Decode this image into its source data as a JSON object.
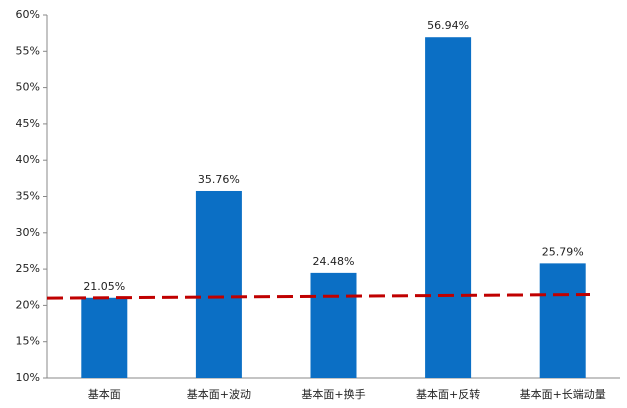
{
  "chart_data": {
    "type": "bar",
    "categories": [
      "基本面",
      "基本面+波动",
      "基本面+换手",
      "基本面+反转",
      "基本面+长端动量"
    ],
    "values": [
      21.05,
      35.76,
      24.48,
      56.94,
      25.79
    ],
    "value_labels": [
      "21.05%",
      "35.76%",
      "24.48%",
      "56.94%",
      "25.79%"
    ],
    "color": "#0b6fc5",
    "ylim": [
      10,
      60
    ],
    "yticks": [
      {
        "value": 10,
        "label": "10%"
      },
      {
        "value": 15,
        "label": "15%"
      },
      {
        "value": 20,
        "label": "20%"
      },
      {
        "value": 25,
        "label": "25%"
      },
      {
        "value": 30,
        "label": "30%"
      },
      {
        "value": 35,
        "label": "35%"
      },
      {
        "value": 40,
        "label": "40%"
      },
      {
        "value": 45,
        "label": "45%"
      },
      {
        "value": 50,
        "label": "50%"
      },
      {
        "value": 55,
        "label": "55%"
      },
      {
        "value": 60,
        "label": "60%"
      }
    ],
    "reference_line": {
      "values": [
        21,
        21.5
      ],
      "color": "#c00000"
    },
    "grid": false
  }
}
